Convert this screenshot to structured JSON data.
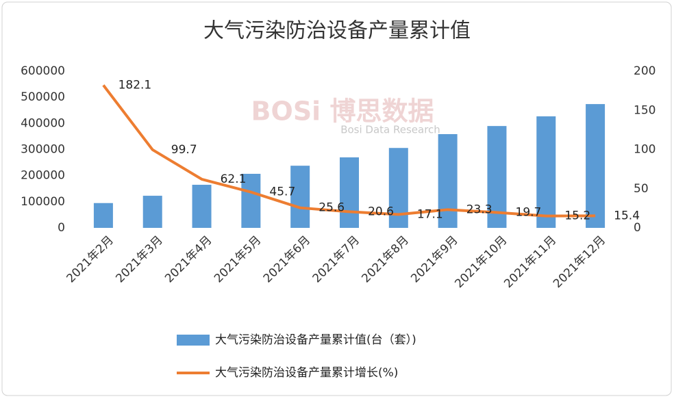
{
  "chart_data": {
    "type": "bar-line",
    "title": "大气污染防治设备产量累计值",
    "watermark": "BOSi 博思数据",
    "watermark_sub": "Bosi Data Research",
    "categories": [
      "2021年2月",
      "2021年3月",
      "2021年4月",
      "2021年5月",
      "2021年6月",
      "2021年7月",
      "2021年8月",
      "2021年9月",
      "2021年10月",
      "2021年11月",
      "2021年12月"
    ],
    "series": [
      {
        "name": "大气污染防治设备产量累计值(台（套）)",
        "type": "bar",
        "color": "#5b9bd5",
        "values": [
          95000,
          123000,
          165000,
          207000,
          238000,
          270000,
          306000,
          359000,
          390000,
          427000,
          474000
        ]
      },
      {
        "name": "大气污染防治设备产量累计增长(%)",
        "type": "line",
        "axis": "y2",
        "color": "#ed7d31",
        "values": [
          182.1,
          99.7,
          62.1,
          45.7,
          25.6,
          20.6,
          17.1,
          23.3,
          19.7,
          15.2,
          15.4
        ]
      }
    ],
    "ylim": [
      0,
      600000
    ],
    "yticks": [
      0,
      100000,
      200000,
      300000,
      400000,
      500000,
      600000
    ],
    "y2lim": [
      0,
      200
    ],
    "y2ticks": [
      0,
      50,
      100,
      150,
      200
    ],
    "legend": "bottom"
  }
}
